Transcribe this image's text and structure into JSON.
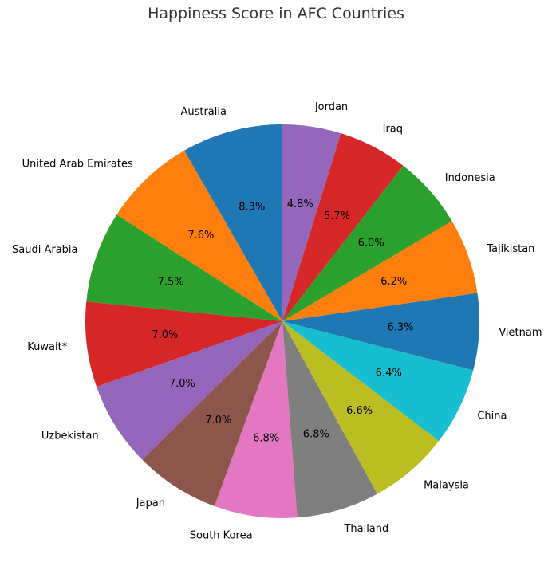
{
  "chart_data": {
    "type": "pie",
    "title": "Happiness Score in AFC Countries",
    "categories": [
      "Australia",
      "United Arab Emirates",
      "Saudi Arabia",
      "Kuwait*",
      "Uzbekistan",
      "Japan",
      "South Korea",
      "Thailand",
      "Malaysia",
      "China",
      "Vietnam",
      "Tajikistan",
      "Indonesia",
      "Iraq",
      "Jordan"
    ],
    "values": [
      8.3,
      7.6,
      7.5,
      7.0,
      7.0,
      7.0,
      6.8,
      6.8,
      6.6,
      6.4,
      6.3,
      6.2,
      6.0,
      5.7,
      4.8
    ],
    "value_labels": [
      "8.3%",
      "7.6%",
      "7.5%",
      "7.0%",
      "7.0%",
      "7.0%",
      "6.8%",
      "6.8%",
      "6.6%",
      "6.4%",
      "6.3%",
      "6.2%",
      "6.0%",
      "5.7%",
      "4.8%"
    ],
    "colors": [
      "#1f77b4",
      "#ff7f0e",
      "#2ca02c",
      "#d62728",
      "#9467bd",
      "#8c564b",
      "#e377c2",
      "#7f7f7f",
      "#bcbd22",
      "#17becf",
      "#1f77b4",
      "#ff7f0e",
      "#2ca02c",
      "#d62728",
      "#9467bd"
    ],
    "start_angle_deg": 90,
    "direction": "counterclockwise",
    "legend": "none"
  }
}
